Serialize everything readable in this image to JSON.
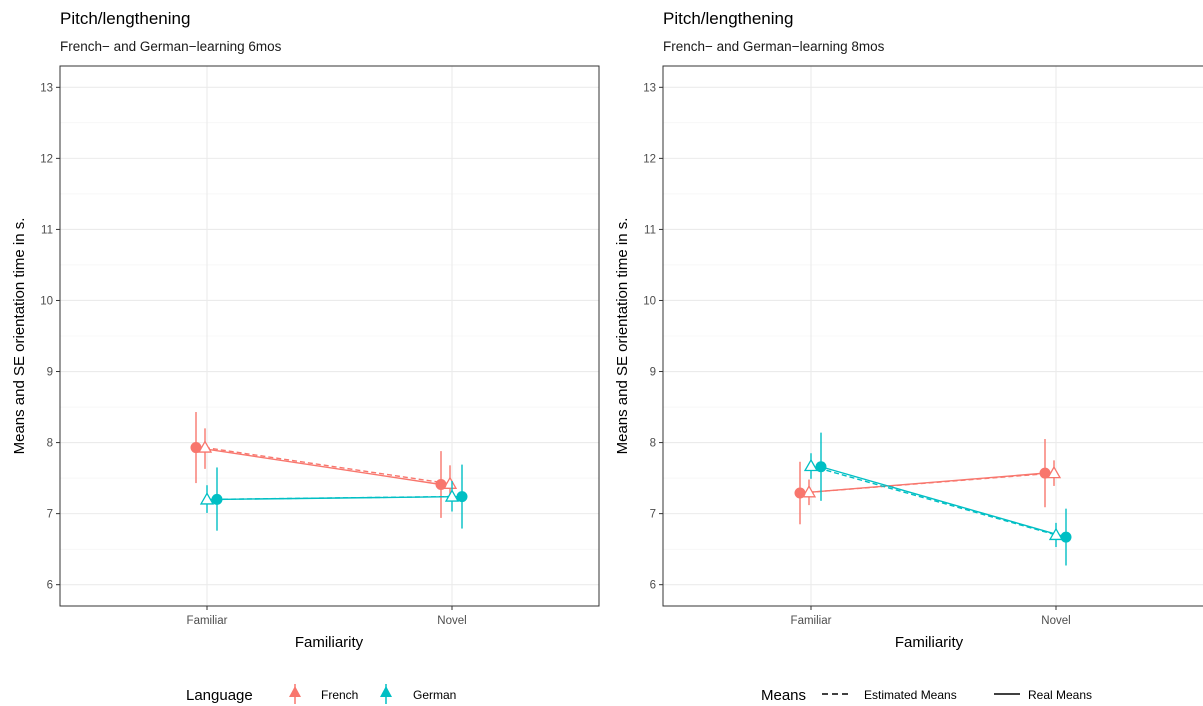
{
  "colors": {
    "french": "#F8766D",
    "german": "#00BFC4",
    "grid_major": "#EBEBEB",
    "grid_minor": "#F2F2F2",
    "border": "#333333"
  },
  "chart_data": [
    {
      "type": "line",
      "title": "Pitch/lengthening",
      "subtitle": "French− and German−learning 6mos",
      "xlabel": "Familiarity",
      "ylabel": "Means and SE orientation time in s.",
      "categories": [
        "Familiar",
        "Novel"
      ],
      "ylim": [
        5.7,
        13.3
      ],
      "yticks": [
        6,
        7,
        8,
        9,
        10,
        11,
        12,
        13
      ],
      "grid": true,
      "legend": {
        "position": "bottom",
        "title": "Language",
        "entries": [
          "French",
          "German"
        ]
      },
      "series": [
        {
          "name": "French",
          "color_key": "french",
          "real_means": [
            7.93,
            7.41
          ],
          "real_se_low": [
            7.43,
            6.94
          ],
          "real_se_high": [
            8.43,
            7.88
          ],
          "estimated_means": [
            7.93,
            7.42
          ],
          "est_se_low": [
            7.63,
            7.17
          ],
          "est_se_high": [
            8.2,
            7.68
          ]
        },
        {
          "name": "German",
          "color_key": "german",
          "real_means": [
            7.2,
            7.24
          ],
          "real_se_low": [
            6.76,
            6.79
          ],
          "real_se_high": [
            7.65,
            7.69
          ],
          "estimated_means": [
            7.2,
            7.24
          ],
          "est_se_low": [
            7.01,
            7.03
          ],
          "est_se_high": [
            7.4,
            7.46
          ]
        }
      ]
    },
    {
      "type": "line",
      "title": "Pitch/lengthening",
      "subtitle": "French− and German−learning 8mos",
      "xlabel": "Familiarity",
      "ylabel": "Means and SE orientation time in s.",
      "categories": [
        "Familiar",
        "Novel"
      ],
      "ylim": [
        5.7,
        13.3
      ],
      "yticks": [
        6,
        7,
        8,
        9,
        10,
        11,
        12,
        13
      ],
      "grid": true,
      "legend": {
        "position": "bottom",
        "title": "Means",
        "entries": [
          "Estimated Means",
          "Real Means"
        ]
      },
      "series": [
        {
          "name": "French",
          "color_key": "french",
          "real_means": [
            7.29,
            7.57
          ],
          "real_se_low": [
            6.85,
            7.09
          ],
          "real_se_high": [
            7.73,
            8.05
          ],
          "estimated_means": [
            7.3,
            7.57
          ],
          "est_se_low": [
            7.12,
            7.39
          ],
          "est_se_high": [
            7.48,
            7.75
          ]
        },
        {
          "name": "German",
          "color_key": "german",
          "real_means": [
            7.66,
            6.67
          ],
          "real_se_low": [
            7.18,
            6.27
          ],
          "real_se_high": [
            8.14,
            7.07
          ],
          "estimated_means": [
            7.67,
            6.7
          ],
          "est_se_low": [
            7.49,
            6.53
          ],
          "est_se_high": [
            7.85,
            6.87
          ]
        }
      ]
    }
  ]
}
